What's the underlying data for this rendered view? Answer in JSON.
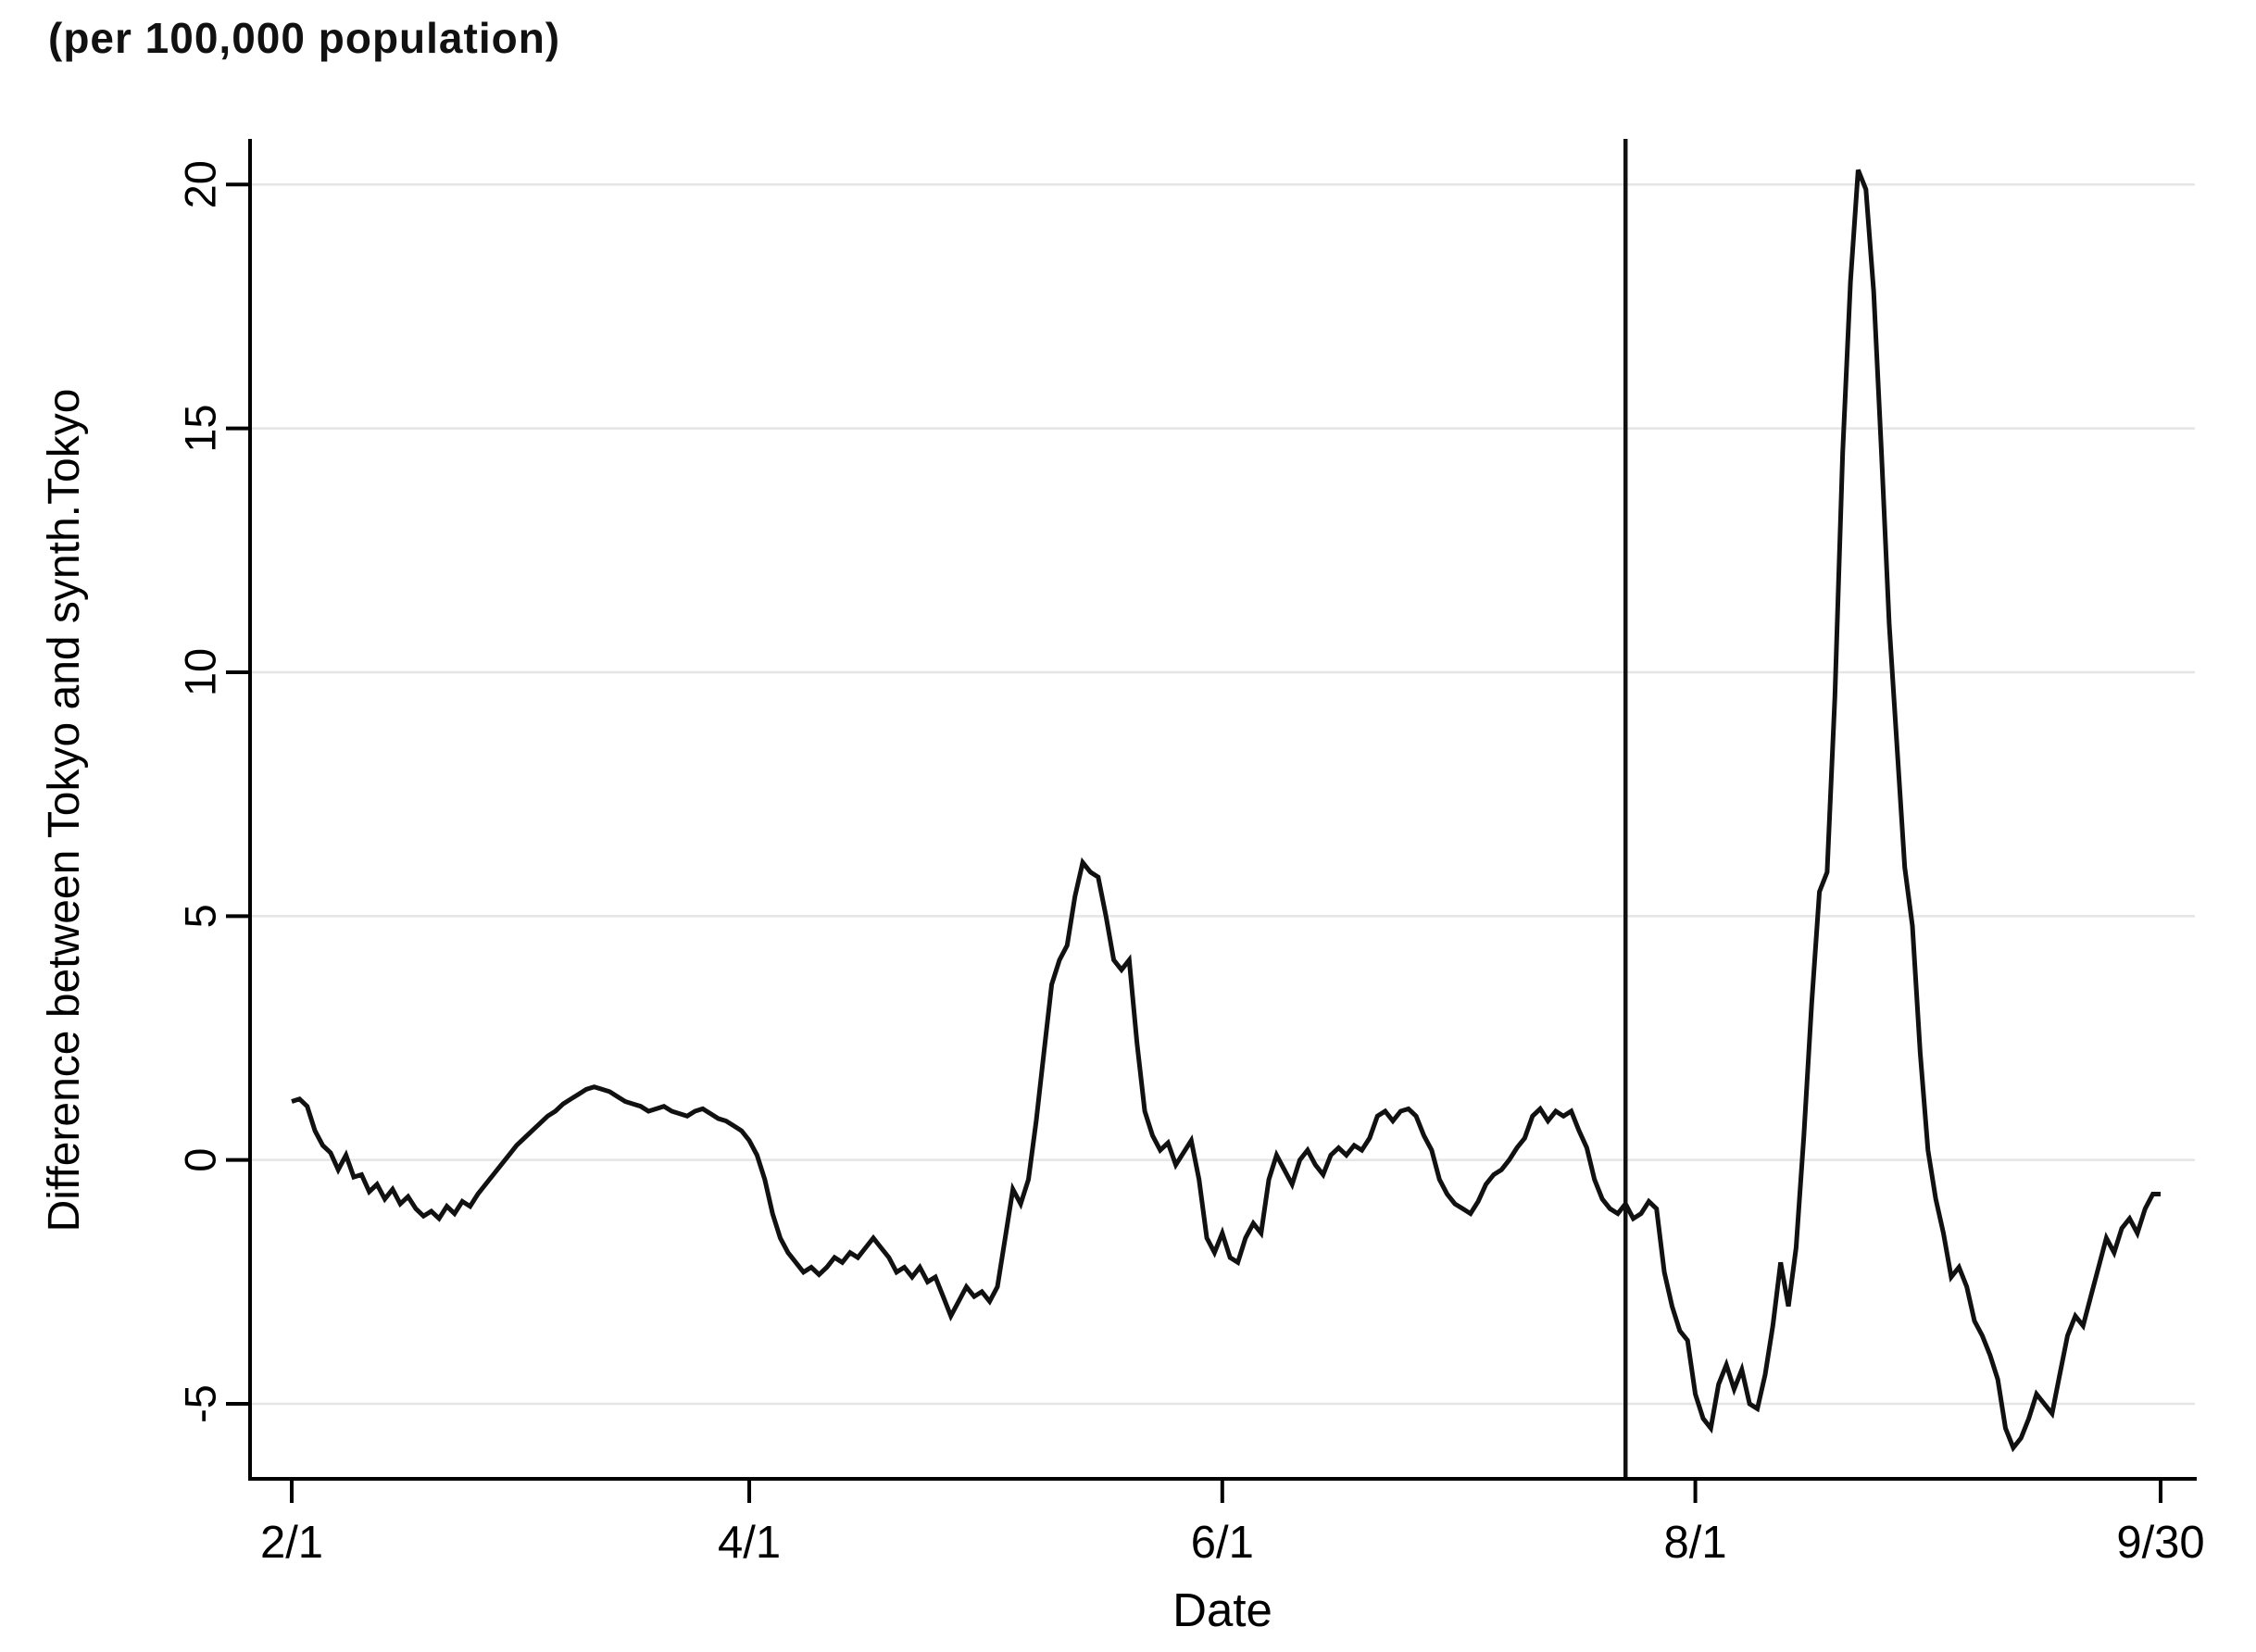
{
  "chart_data": {
    "type": "line",
    "top_left_note": "(per 100,000 population)",
    "xlabel": "Date",
    "ylabel": "Difference between Tokyo and synth.Tokyo",
    "x_unit": "day index from 2/1 (daily data, 2/1 through 9/30)",
    "x_max_day": 241,
    "x_ticks": [
      {
        "day": 0,
        "label": "2/1"
      },
      {
        "day": 59,
        "label": "4/1"
      },
      {
        "day": 120,
        "label": "6/1"
      },
      {
        "day": 181,
        "label": "8/1"
      },
      {
        "day": 241,
        "label": "9/30"
      }
    ],
    "y_ticks": [
      -5,
      0,
      5,
      10,
      15,
      20
    ],
    "ylim": [
      -6.5,
      20.86
    ],
    "grid": "horizontal",
    "legend": "none",
    "line_color": "#111111",
    "grid_color": "#e5e5e5",
    "axis_color": "#000000",
    "vline_day": 172,
    "series": [
      {
        "name": "Difference between Tokyo and synth.Tokyo",
        "start_label": "2/1",
        "values": [
          1.2,
          1.25,
          1.1,
          0.6,
          0.3,
          0.15,
          -0.2,
          0.1,
          -0.35,
          -0.3,
          -0.65,
          -0.5,
          -0.8,
          -0.6,
          -0.9,
          -0.75,
          -1.0,
          -1.15,
          -1.05,
          -1.2,
          -0.95,
          -1.1,
          -0.85,
          -0.95,
          -0.7,
          -0.5,
          -0.3,
          -0.1,
          0.1,
          0.3,
          0.45,
          0.6,
          0.75,
          0.9,
          1.0,
          1.15,
          1.25,
          1.35,
          1.45,
          1.5,
          1.45,
          1.4,
          1.3,
          1.2,
          1.15,
          1.1,
          1.0,
          1.05,
          1.1,
          1.0,
          0.95,
          0.9,
          1.0,
          1.05,
          0.95,
          0.85,
          0.8,
          0.7,
          0.6,
          0.4,
          0.1,
          -0.4,
          -1.1,
          -1.6,
          -1.9,
          -2.1,
          -2.3,
          -2.2,
          -2.35,
          -2.2,
          -2.0,
          -2.1,
          -1.9,
          -2.0,
          -1.8,
          -1.6,
          -1.8,
          -2.0,
          -2.3,
          -2.2,
          -2.4,
          -2.2,
          -2.5,
          -2.4,
          -2.8,
          -3.2,
          -2.9,
          -2.6,
          -2.8,
          -2.7,
          -2.9,
          -2.6,
          -1.6,
          -0.6,
          -0.9,
          -0.4,
          0.8,
          2.2,
          3.6,
          4.1,
          4.4,
          5.4,
          6.1,
          5.9,
          5.8,
          5.0,
          4.1,
          3.9,
          4.1,
          2.4,
          1.0,
          0.5,
          0.2,
          0.35,
          -0.1,
          0.15,
          0.4,
          -0.4,
          -1.6,
          -1.9,
          -1.5,
          -2.0,
          -2.1,
          -1.6,
          -1.3,
          -1.5,
          -0.4,
          0.1,
          -0.2,
          -0.5,
          0.0,
          0.2,
          -0.1,
          -0.3,
          0.1,
          0.25,
          0.1,
          0.3,
          0.2,
          0.45,
          0.9,
          1.0,
          0.8,
          1.0,
          1.05,
          0.9,
          0.5,
          0.2,
          -0.4,
          -0.7,
          -0.9,
          -1.0,
          -1.1,
          -0.85,
          -0.5,
          -0.3,
          -0.2,
          0.0,
          0.25,
          0.45,
          0.9,
          1.05,
          0.8,
          1.0,
          0.9,
          1.0,
          0.6,
          0.25,
          -0.4,
          -0.8,
          -1.0,
          -1.1,
          -0.9,
          -1.2,
          -1.1,
          -0.85,
          -1.0,
          -2.3,
          -3.0,
          -3.5,
          -3.7,
          -4.8,
          -5.3,
          -5.5,
          -4.6,
          -4.2,
          -4.7,
          -4.3,
          -5.0,
          -5.1,
          -4.4,
          -3.4,
          -2.1,
          -3.0,
          -1.8,
          0.5,
          3.2,
          5.5,
          5.9,
          9.5,
          14.5,
          18.0,
          20.3,
          19.9,
          17.8,
          14.5,
          11.0,
          8.5,
          6.0,
          4.8,
          2.2,
          0.2,
          -0.8,
          -1.5,
          -2.4,
          -2.2,
          -2.6,
          -3.3,
          -3.6,
          -4.0,
          -4.5,
          -5.5,
          -5.9,
          -5.7,
          -5.3,
          -4.8,
          -5.0,
          -5.2,
          -4.4,
          -3.6,
          -3.2,
          -3.4,
          -2.8,
          -2.2,
          -1.6,
          -1.9,
          -1.4,
          -1.2,
          -1.5,
          -1.0,
          -0.7,
          -0.7
        ]
      }
    ]
  }
}
